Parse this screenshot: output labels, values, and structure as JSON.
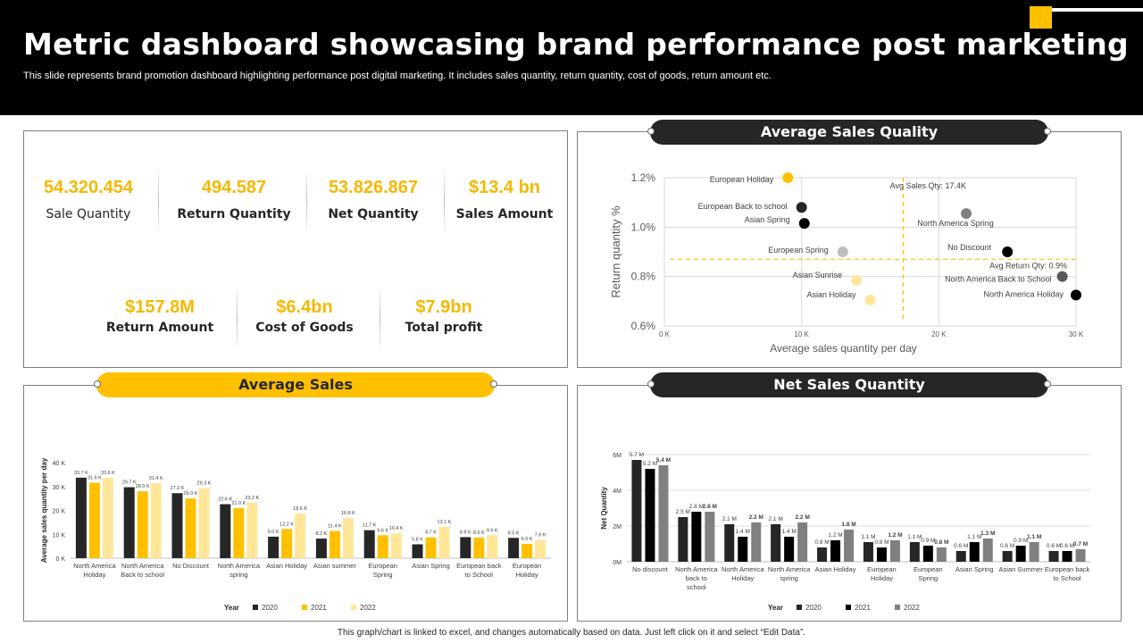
{
  "header": {
    "title": "Metric dashboard showcasing brand performance post marketing",
    "subtitle": "This slide represents brand promotion dashboard highlighting performance post digital marketing. It includes sales quantity, return quantity, cost of goods, return amount etc."
  },
  "kpis": {
    "row1": [
      {
        "value": "54.320.454",
        "label": "Sale Quantity"
      },
      {
        "value": "494.587",
        "label": "Return Quantity"
      },
      {
        "value": "53.826.867",
        "label": "Net Quantity"
      },
      {
        "value": "$13.4 bn",
        "label": "Sales Amount"
      }
    ],
    "row2": [
      {
        "value": "$157.8M",
        "label": "Return Amount"
      },
      {
        "value": "$6.4bn",
        "label": "Cost of Goods"
      },
      {
        "value": "$7.9bn",
        "label": "Total profit"
      }
    ]
  },
  "panels": {
    "scatter_title": "Average Sales Quality",
    "avg_sales_title": "Average Sales",
    "net_sales_title": "Net Sales Quantity"
  },
  "footer": "This graph/chart is linked to excel, and changes automatically based on data. Just left click on it and select “Edit Data”.",
  "colors": {
    "gold": "#FFC000",
    "dark": "#262626",
    "light_gold": "#FFE699",
    "gray": "#808080",
    "light_gray": "#BFBFBF"
  },
  "chart_data": [
    {
      "id": "scatter",
      "type": "scatter",
      "title": "Average Sales Quality",
      "xlabel": "Average sales quantity per day",
      "ylabel": "Return quantity  %",
      "xlim": [
        0,
        30000
      ],
      "ylim": [
        0.6,
        1.2
      ],
      "xticks": [
        "0 K",
        "10 K",
        "20 K",
        "30 K"
      ],
      "yticks": [
        "0.6%",
        "0.8%",
        "1.0%",
        "1.2%"
      ],
      "avg_x": 17400,
      "avg_y": 0.87,
      "avg_x_label": "Avg Sales Qty: 17.4K",
      "avg_y_label": "Avg Return Qty: 0.9%",
      "points": [
        {
          "label": "European Holiday",
          "x": 9000,
          "y": 1.2,
          "color": "#FFC000"
        },
        {
          "label": "European Back to school",
          "x": 10000,
          "y": 1.08,
          "color": "#262626"
        },
        {
          "label": "Asian Spring",
          "x": 10200,
          "y": 1.015,
          "color": "#000000"
        },
        {
          "label": "European Spring",
          "x": 13000,
          "y": 0.9,
          "color": "#BFBFBF"
        },
        {
          "label": "Asian Sunrise",
          "x": 14000,
          "y": 0.785,
          "color": "#FFE699"
        },
        {
          "label": "Asian Holiday",
          "x": 15000,
          "y": 0.705,
          "color": "#FFE699"
        },
        {
          "label": "North America Spring",
          "x": 22000,
          "y": 1.055,
          "color": "#808080"
        },
        {
          "label": "No Discount",
          "x": 25000,
          "y": 0.9,
          "color": "#000000"
        },
        {
          "label": "North America Back to School",
          "x": 29000,
          "y": 0.8,
          "color": "#595959"
        },
        {
          "label": "North America Holiday",
          "x": 30000,
          "y": 0.725,
          "color": "#000000"
        }
      ]
    },
    {
      "id": "avg_sales",
      "type": "bar",
      "title": "Average Sales",
      "ylabel": "Average sales quantity per day",
      "ylim": [
        0,
        40
      ],
      "yticks": [
        "0 K",
        "10 K",
        "20 K",
        "30 K",
        "40 K"
      ],
      "legend_title": "Year",
      "categories": [
        "North America Holiday",
        "North America Back to school",
        "No Discount",
        "North America spring",
        "Asian Holiday",
        "Asian summer",
        "European Spring",
        "Asian Spring",
        "European back to School",
        "European Holiday"
      ],
      "series": [
        {
          "name": "2020",
          "color": "#262626",
          "values": [
            33.7,
            29.7,
            27.2,
            22.6,
            9.0,
            8.2,
            11.7,
            5.8,
            8.8,
            8.5
          ],
          "labels": [
            "33.7 K",
            "29.7 K",
            "27.2 K",
            "22.6 K",
            "9.0 K",
            "8.2 K",
            "11.7 K",
            "5.8 K",
            "8.8 K",
            "8.5 K"
          ]
        },
        {
          "name": "2021",
          "color": "#FFC000",
          "values": [
            31.6,
            28.0,
            25.0,
            21.0,
            12.2,
            11.4,
            9.6,
            8.7,
            8.6,
            6.0
          ],
          "labels": [
            "31.6 K",
            "28.0 K",
            "25.0 K",
            "21.0 K",
            "12.2 K",
            "11.4 K",
            "9.6 K",
            "8.7 K",
            "8.6 K",
            "6.0 K"
          ]
        },
        {
          "name": "2022",
          "color": "#FFE699",
          "values": [
            33.6,
            31.4,
            29.3,
            23.2,
            18.6,
            16.8,
            10.4,
            13.1,
            9.6,
            7.6
          ],
          "labels": [
            "33.6 K",
            "31.4 K",
            "29.3 K",
            "23.2 K",
            "18.6 K",
            "16.8 K",
            "10.4 K",
            "13.1 K",
            "9.6 K",
            "7.6 K"
          ]
        }
      ]
    },
    {
      "id": "net_sales",
      "type": "bar",
      "title": "Net Sales Quantity",
      "ylabel": "Net Quantity",
      "ylim": [
        0,
        6
      ],
      "yticks": [
        "0M",
        "2M",
        "4M",
        "6M"
      ],
      "legend_title": "Year",
      "categories": [
        "No discount",
        "North America back to school",
        "North America Holiday",
        "North America spring",
        "Asian Holiday",
        "European Holiday",
        "European Spring",
        "Asian Spring",
        "Asian Summer",
        "European back to School"
      ],
      "series": [
        {
          "name": "2020",
          "color": "#262626",
          "values": [
            5.7,
            2.5,
            2.1,
            2.1,
            0.8,
            1.1,
            1.1,
            0.6,
            0.6,
            0.6
          ],
          "labels": [
            "5.7 M",
            "2.5 M",
            "2.1 M",
            "2.1 M",
            "0.8 M",
            "1.1 M",
            "1.1 M",
            "0.6 M",
            "0.6 M",
            "0.6 M"
          ]
        },
        {
          "name": "2021",
          "color": "#000000",
          "values": [
            5.2,
            2.8,
            1.4,
            1.4,
            1.2,
            0.8,
            0.9,
            1.1,
            0.9,
            0.6
          ],
          "labels": [
            "5.2 M",
            "2.8 M",
            "1.4 M",
            "1.4 M",
            "1.2 M",
            "0.8 M",
            "0.9 M",
            "1.1 M",
            "0.9 M",
            "0.6 M"
          ]
        },
        {
          "name": "2022",
          "color": "#808080",
          "values": [
            5.4,
            2.8,
            2.2,
            2.2,
            1.8,
            1.2,
            0.8,
            1.3,
            1.1,
            0.7
          ],
          "labels": [
            "5.4 M",
            "2.8 M",
            "2.2 M",
            "2.2 M",
            "1.8 M",
            "1.2 M",
            "0.8 M",
            "1.3 M",
            "1.1 M",
            "0.7 M"
          ]
        }
      ]
    }
  ]
}
